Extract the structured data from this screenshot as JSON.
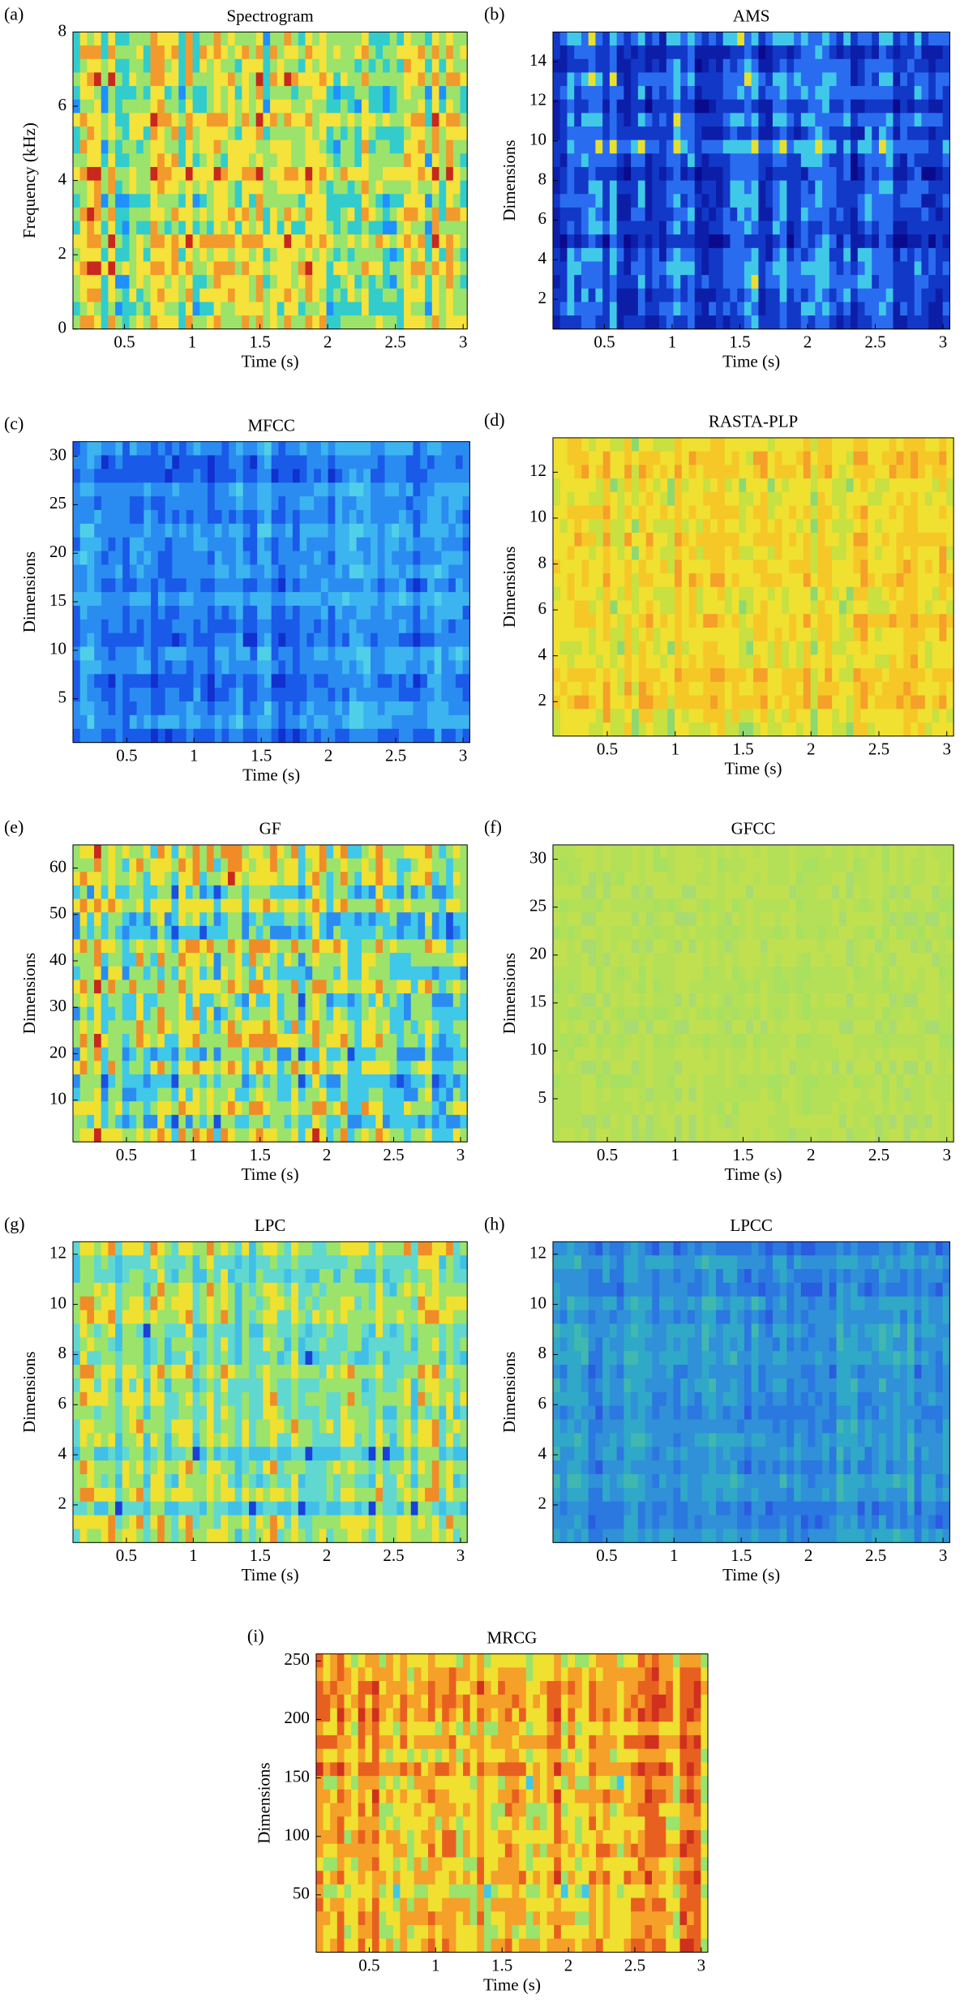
{
  "chart_data": [
    {
      "type": "heatmap",
      "panel_label": "(a)",
      "title": "Spectrogram",
      "xlabel": "Time (s)",
      "ylabel": "Frequency (kHz)",
      "xlim": [
        0.12,
        3.03
      ],
      "ylim": [
        0,
        8
      ],
      "xticks": [
        0.5,
        1,
        1.5,
        2,
        2.5,
        3
      ],
      "yticks": [
        0,
        2,
        4,
        6,
        8
      ],
      "colors": [
        "#1e90ff",
        "#33cccc",
        "#9be36a",
        "#f5e23a",
        "#f39a2c",
        "#c8281e"
      ]
    },
    {
      "type": "heatmap",
      "panel_label": "(b)",
      "title": "AMS",
      "xlabel": "Time (s)",
      "ylabel": "Dimensions",
      "xlim": [
        0.12,
        3.05
      ],
      "ylim": [
        0.5,
        15.5
      ],
      "xticks": [
        0.5,
        1,
        1.5,
        2,
        2.5,
        3
      ],
      "yticks": [
        2,
        4,
        6,
        8,
        10,
        12,
        14
      ],
      "colors": [
        "#0a0a8c",
        "#0c1ea8",
        "#1238c8",
        "#2a6cf0",
        "#40c8e8",
        "#e8e030"
      ]
    },
    {
      "type": "heatmap",
      "panel_label": "(c)",
      "title": "MFCC",
      "xlabel": "Time (s)",
      "ylabel": "Dimensions",
      "xlim": [
        0.1,
        3.05
      ],
      "ylim": [
        0.5,
        31.5
      ],
      "xticks": [
        0.5,
        1,
        1.5,
        2,
        2.5,
        3
      ],
      "yticks": [
        5,
        10,
        15,
        20,
        25,
        30
      ],
      "colors": [
        "#1030d0",
        "#1a5ae8",
        "#2a8cf0",
        "#3cb4f0",
        "#50d0e8"
      ]
    },
    {
      "type": "heatmap",
      "panel_label": "(d)",
      "title": "RASTA-PLP",
      "xlabel": "Time (s)",
      "ylabel": "Dimensions",
      "xlim": [
        0.1,
        3.05
      ],
      "ylim": [
        0.5,
        13.5
      ],
      "xticks": [
        0.5,
        1,
        1.5,
        2,
        2.5,
        3
      ],
      "yticks": [
        2,
        4,
        6,
        8,
        10,
        12
      ],
      "colors": [
        "#8ed870",
        "#c8e040",
        "#f0e030",
        "#f5c828",
        "#f5a028"
      ]
    },
    {
      "type": "heatmap",
      "panel_label": "(e)",
      "title": "GF",
      "xlabel": "Time (s)",
      "ylabel": "Dimensions",
      "xlim": [
        0.1,
        3.05
      ],
      "ylim": [
        1,
        65
      ],
      "xticks": [
        0.5,
        1,
        1.5,
        2,
        2.5,
        3
      ],
      "yticks": [
        10,
        20,
        30,
        40,
        50,
        60
      ],
      "colors": [
        "#1a50e0",
        "#2a8cf0",
        "#40c8e8",
        "#9be36a",
        "#f0e030",
        "#f08c28",
        "#c8281e"
      ]
    },
    {
      "type": "heatmap",
      "panel_label": "(f)",
      "title": "GFCC",
      "xlabel": "Time (s)",
      "ylabel": "Dimensions",
      "xlim": [
        0.1,
        3.05
      ],
      "ylim": [
        0.5,
        31.5
      ],
      "xticks": [
        0.5,
        1,
        1.5,
        2,
        2.5,
        3
      ],
      "yticks": [
        5,
        10,
        15,
        20,
        25,
        30
      ],
      "colors": [
        "#a8e060",
        "#b4e058",
        "#c0e050",
        "#a8dc70"
      ]
    },
    {
      "type": "heatmap",
      "panel_label": "(g)",
      "title": "LPC",
      "xlabel": "Time (s)",
      "ylabel": "Dimensions",
      "xlim": [
        0.1,
        3.05
      ],
      "ylim": [
        0.5,
        12.5
      ],
      "xticks": [
        0.5,
        1,
        1.5,
        2,
        2.5,
        3
      ],
      "yticks": [
        2,
        4,
        6,
        8,
        10,
        12
      ],
      "colors": [
        "#1a40d8",
        "#40c0e8",
        "#60d8d0",
        "#9be36a",
        "#f0e030",
        "#f08c28"
      ]
    },
    {
      "type": "heatmap",
      "panel_label": "(h)",
      "title": "LPCC",
      "xlabel": "Time (s)",
      "ylabel": "Dimensions",
      "xlim": [
        0.1,
        3.05
      ],
      "ylim": [
        0.5,
        12.5
      ],
      "xticks": [
        0.5,
        1,
        1.5,
        2,
        2.5,
        3
      ],
      "yticks": [
        2,
        4,
        6,
        8,
        10,
        12
      ],
      "colors": [
        "#2a5ce0",
        "#2a78e0",
        "#3090d8",
        "#30a8c8",
        "#40b8b0"
      ]
    },
    {
      "type": "heatmap",
      "panel_label": "(i)",
      "title": "MRCG",
      "xlabel": "Time (s)",
      "ylabel": "Dimensions",
      "xlim": [
        0.1,
        3.05
      ],
      "ylim": [
        1,
        256
      ],
      "xticks": [
        0.5,
        1,
        1.5,
        2,
        2.5,
        3
      ],
      "yticks": [
        50,
        100,
        150,
        200,
        250
      ],
      "colors": [
        "#40c8e8",
        "#9be36a",
        "#f0e030",
        "#f5a028",
        "#e86020",
        "#d0301e"
      ]
    }
  ]
}
